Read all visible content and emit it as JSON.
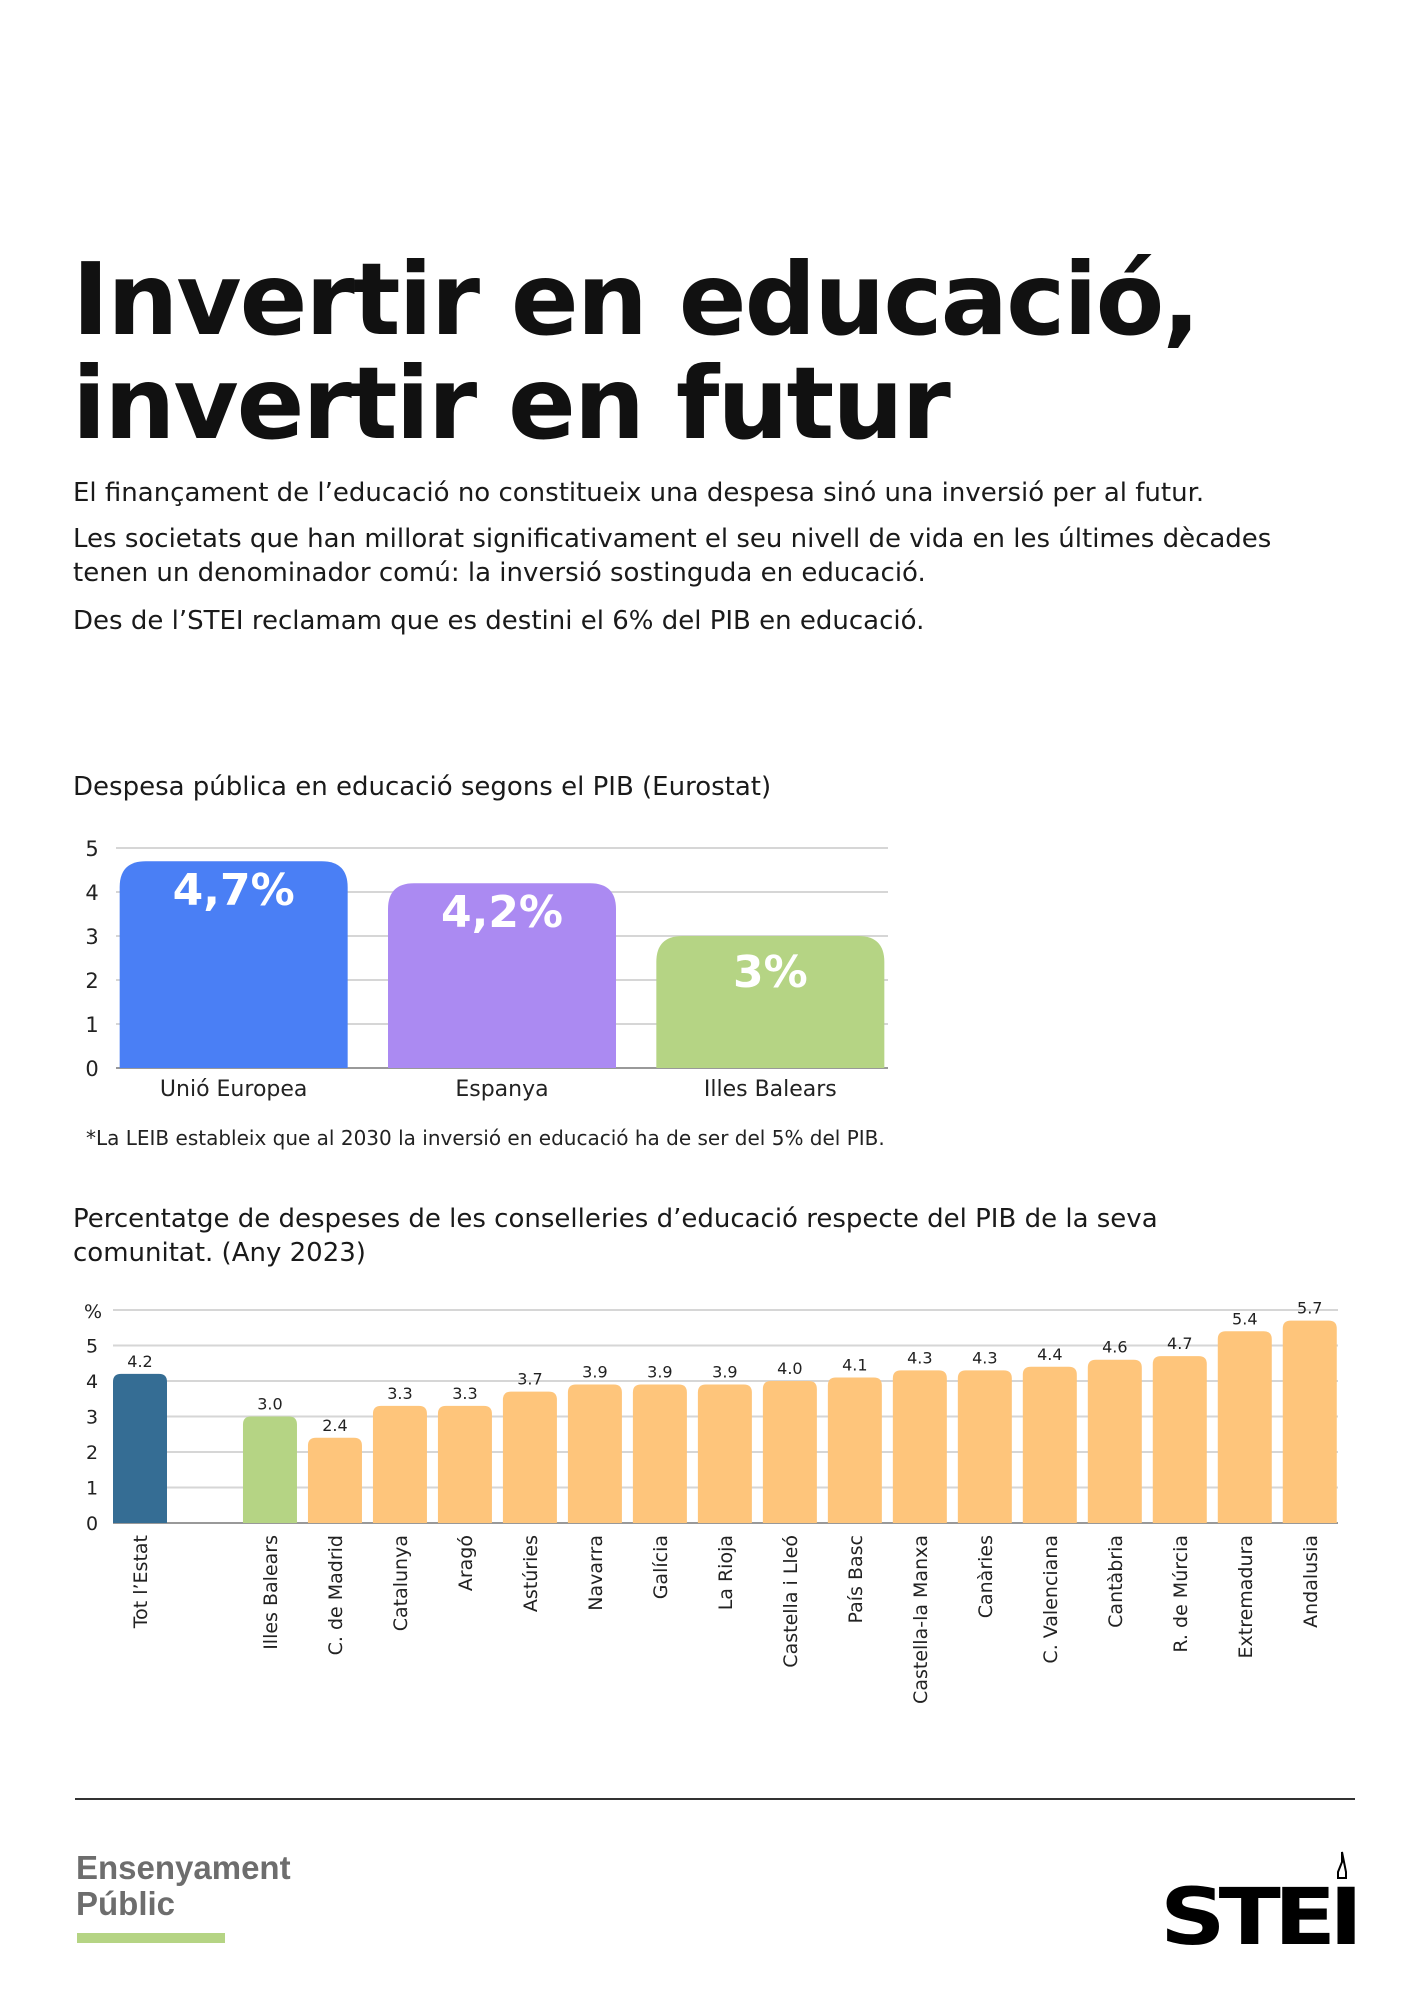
{
  "header": {
    "title_line1": "Invertir en educació,",
    "title_line2": "invertir en futur"
  },
  "intro": [
    "El finançament de l’educació no constitueix una despesa sinó una inversió per al futur.",
    "Les societats que han millorat significativament el seu nivell de vida en les últimes dècades",
    "tenen un denominador comú: la inversió sostinguda en educació.",
    "Des de l’STEI reclamam que es destini el 6% del PIB en educació."
  ],
  "chart_data": [
    {
      "type": "bar",
      "title": "Despesa pública en educació segons el PIB (Eurostat)",
      "categories": [
        "Unió Europea",
        "Espanya",
        "Illes Balears"
      ],
      "values": [
        4.7,
        4.2,
        3.0
      ],
      "data_labels": [
        "4,7%",
        "4,2%",
        "3%"
      ],
      "colors": [
        "#4a7ff5",
        "#ab8af2",
        "#b5d484"
      ],
      "yticks": [
        "0",
        "1",
        "2",
        "3",
        "4",
        "5"
      ],
      "ylim": [
        0,
        5
      ],
      "grid": true,
      "footnote": "*La LEIB estableix que al 2030 la inversió en educació ha de ser del 5% del PIB."
    },
    {
      "type": "bar",
      "title": "Percentatge de despeses de les conselleries d’educació respecte del PIB de la seva comunitat. (Any 2023)",
      "ylabel": "%",
      "categories": [
        "Tot l’Estat",
        "Illes Balears",
        "C. de Madrid",
        "Catalunya",
        "Aragó",
        "Astúries",
        "Navarra",
        "Galícia",
        "La Rioja",
        "Castella i Lleó",
        "País Basc",
        "Castella-la Manxa",
        "Canàries",
        "C. Valenciana",
        "Cantàbria",
        "R. de Múrcia",
        "Extremadura",
        "Andalusia"
      ],
      "values": [
        4.2,
        3.0,
        2.4,
        3.3,
        3.3,
        3.7,
        3.9,
        3.9,
        3.9,
        4.0,
        4.1,
        4.3,
        4.3,
        4.4,
        4.6,
        4.7,
        5.4,
        5.7
      ],
      "data_labels": [
        "4.2",
        "3.0",
        "2.4",
        "3.3",
        "3.3",
        "3.7",
        "3.9",
        "3.9",
        "3.9",
        "4.0",
        "4.1",
        "4.3",
        "4.3",
        "4.4",
        "4.6",
        "4.7",
        "5.4",
        "5.7"
      ],
      "colors": {
        "total": "#356d94",
        "highlight": "#b5d484",
        "default": "#fec57b"
      },
      "yticks": [
        "0",
        "1",
        "2",
        "3",
        "4",
        "5"
      ],
      "ylim": [
        0,
        6
      ],
      "grid": true
    }
  ],
  "footer": {
    "brand_line1": "Ensenyament",
    "brand_line2": "Públic",
    "logo_text": "STEI",
    "accent": "#b5d484"
  }
}
